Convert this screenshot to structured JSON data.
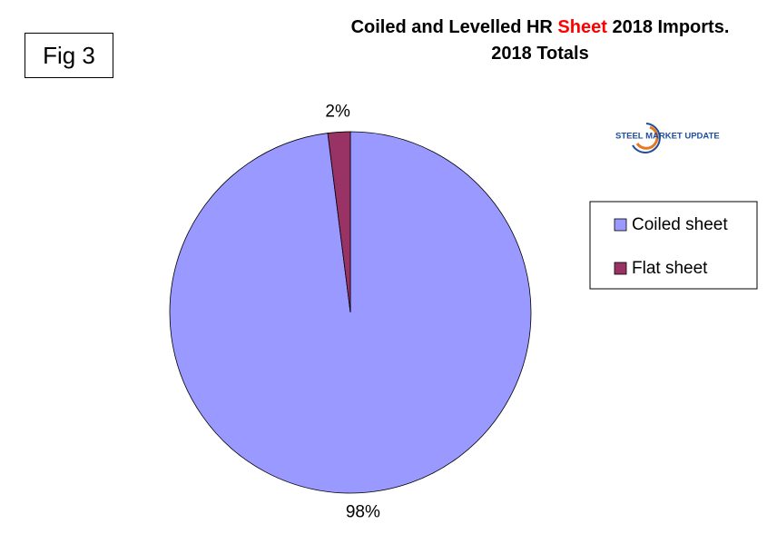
{
  "chart_data": {
    "type": "pie",
    "title": [
      {
        "text": "Coiled and Levelled HR",
        "color": "#000000"
      },
      {
        "text": "Sheet",
        "color": "#ff0000"
      },
      {
        "text": "2018 Imports.",
        "color": "#000000"
      }
    ],
    "subtitle": "2018 Totals",
    "figure_label": "Fig 3",
    "logo_text": "STEEL MARKET UPDATE",
    "categories": [
      "Coiled sheet",
      "Flat sheet"
    ],
    "values": [
      98,
      2
    ],
    "value_labels": [
      "98%",
      "2%"
    ],
    "colors": [
      "#9999ff",
      "#993366"
    ],
    "legend": "right"
  }
}
